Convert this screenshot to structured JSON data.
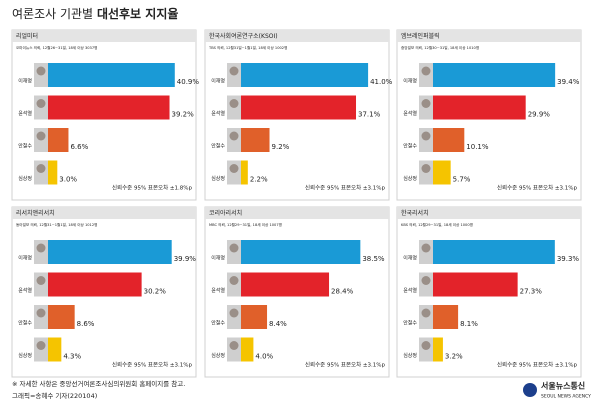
{
  "title": "여론조사 기관별",
  "title_bold": "대선후보 지지율",
  "chart_data": [
    {
      "type": "bar",
      "title": "리얼미터",
      "subtitle": "오마이뉴스 의뢰, 12월26~31일, 18세 이상 3037명",
      "categories": [
        "이재명",
        "윤석열",
        "안철수",
        "심상정"
      ],
      "values": [
        40.9,
        39.2,
        6.6,
        3.0
      ],
      "value_labels": [
        "40.9%",
        "39.2%",
        "6.6%",
        "3.0%"
      ],
      "colors": [
        "#1a9ad6",
        "#e3232a",
        "#e0602a",
        "#f5c400"
      ],
      "note": "신뢰수준 95% 표본오차 ±1.8%p"
    },
    {
      "type": "bar",
      "title": "한국사회여론연구소(KSOI)",
      "subtitle": "TBS 의뢰, 12월31일~1월1일, 18세 이상 1002명",
      "categories": [
        "이재명",
        "윤석열",
        "안철수",
        "심상정"
      ],
      "values": [
        41.0,
        37.1,
        9.2,
        2.2
      ],
      "value_labels": [
        "41.0%",
        "37.1%",
        "9.2%",
        "2.2%"
      ],
      "colors": [
        "#1a9ad6",
        "#e3232a",
        "#e0602a",
        "#f5c400"
      ],
      "note": "신뢰수준 95% 표본오차 ±3.1%p"
    },
    {
      "type": "bar",
      "title": "엠브레인퍼블릭",
      "subtitle": "중앙일보 의뢰, 12월30~31일, 18세 이상 1010명",
      "categories": [
        "이재명",
        "윤석열",
        "안철수",
        "심상정"
      ],
      "values": [
        39.4,
        29.9,
        10.1,
        5.7
      ],
      "value_labels": [
        "39.4%",
        "29.9%",
        "10.1%",
        "5.7%"
      ],
      "colors": [
        "#1a9ad6",
        "#e3232a",
        "#e0602a",
        "#f5c400"
      ],
      "note": "신뢰수준 95% 표본오차 ±3.1%p"
    },
    {
      "type": "bar",
      "title": "리서치앤리서치",
      "subtitle": "동아일보 의뢰, 12월31~1월1일, 18세 이상 1012명",
      "categories": [
        "이재명",
        "윤석열",
        "안철수",
        "심상정"
      ],
      "values": [
        39.9,
        30.2,
        8.6,
        4.3
      ],
      "value_labels": [
        "39.9%",
        "30.2%",
        "8.6%",
        "4.3%"
      ],
      "colors": [
        "#1a9ad6",
        "#e3232a",
        "#e0602a",
        "#f5c400"
      ],
      "note": "신뢰수준 95% 표본오차 ±3.1%p"
    },
    {
      "type": "bar",
      "title": "코리아리서치",
      "subtitle": "MBC 의뢰, 12월29~31일, 18세 이상 1007명",
      "categories": [
        "이재명",
        "윤석열",
        "안철수",
        "심상정"
      ],
      "values": [
        38.5,
        28.4,
        8.4,
        4.0
      ],
      "value_labels": [
        "38.5%",
        "28.4%",
        "8.4%",
        "4.0%"
      ],
      "colors": [
        "#1a9ad6",
        "#e3232a",
        "#e0602a",
        "#f5c400"
      ],
      "note": "신뢰수준 95% 표본오차 ±3.1%p"
    },
    {
      "type": "bar",
      "title": "한국리서치",
      "subtitle": "KBS 의뢰, 12월29~31일, 18세 이상 1000명",
      "categories": [
        "이재명",
        "윤석열",
        "안철수",
        "심상정"
      ],
      "values": [
        39.3,
        27.3,
        8.1,
        3.2
      ],
      "value_labels": [
        "39.3%",
        "27.3%",
        "8.1%",
        "3.2%"
      ],
      "colors": [
        "#1a9ad6",
        "#e3232a",
        "#e0602a",
        "#f5c400"
      ],
      "note": "신뢰수준 95% 표본오차 ±3.1%p"
    }
  ],
  "footer": {
    "note": "※ 자세한 사항은 중앙선거여론조사심의위원회 홈페이지를 참고.",
    "credit": "그래픽=송혜수 기자(220104)",
    "logo": "서울뉴스통신",
    "logo_en": "SEOUL NEWS AGENCY"
  }
}
